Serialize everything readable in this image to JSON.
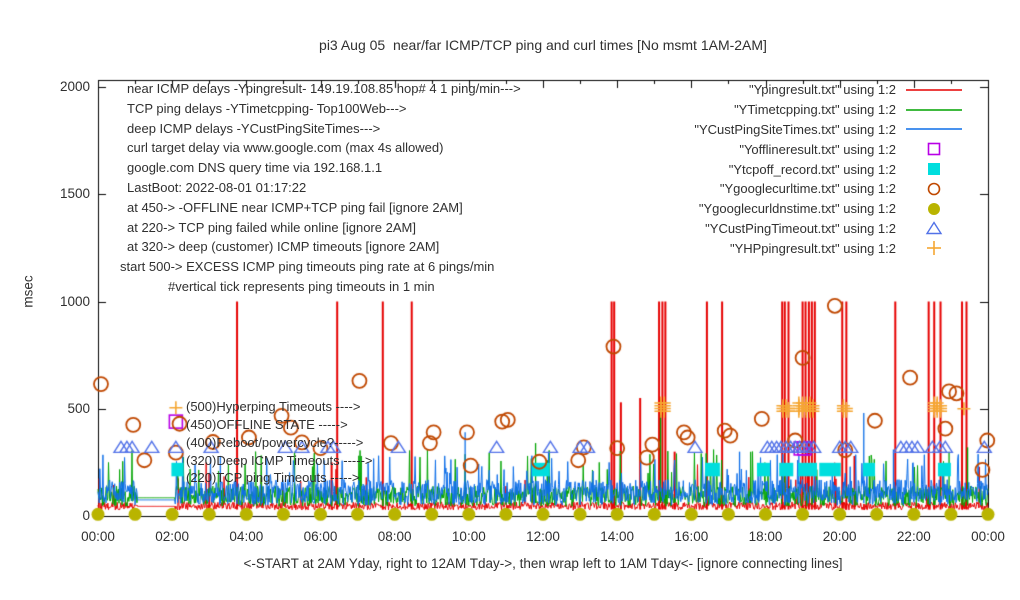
{
  "title": "pi3 Aug 05  near/far ICMP/TCP ping and curl times [No msmt 1AM-2AM]",
  "chart_data": {
    "type": "line",
    "title": "pi3 Aug 05  near/far ICMP/TCP ping and curl times [No msmt 1AM-2AM]",
    "xlabel": "<-START at 2AM Yday, right to 12AM Tday->, then wrap left to 1AM Tday<- [ignore connecting lines]",
    "ylabel": "msec",
    "xlim_hours": [
      0,
      24
    ],
    "ylim": [
      0,
      2050
    ],
    "grid": false,
    "legend_position": "top-right",
    "yticks": [
      {
        "v": 0,
        "label": "0"
      },
      {
        "v": 500,
        "label": "500"
      },
      {
        "v": 1000,
        "label": "1000"
      },
      {
        "v": 1500,
        "label": "1500"
      },
      {
        "v": 2000,
        "label": "2000"
      }
    ],
    "xticks": [
      {
        "h": 0,
        "label": "00:00"
      },
      {
        "h": 2,
        "label": "02:00"
      },
      {
        "h": 4,
        "label": "04:00"
      },
      {
        "h": 6,
        "label": "06:00"
      },
      {
        "h": 8,
        "label": "08:00"
      },
      {
        "h": 10,
        "label": "10:00"
      },
      {
        "h": 12,
        "label": "12:00"
      },
      {
        "h": 14,
        "label": "14:00"
      },
      {
        "h": 16,
        "label": "16:00"
      },
      {
        "h": 18,
        "label": "18:00"
      },
      {
        "h": 20,
        "label": "20:00"
      },
      {
        "h": 22,
        "label": "22:00"
      },
      {
        "h": 24,
        "label": "00:00"
      }
    ],
    "info_lines": [
      "near ICMP delays -Ypingresult- 149.19.108.85 hop# 4 1 ping/min--->",
      "TCP ping delays -YTimetcpping- Top100Web--->",
      "deep ICMP delays -YCustPingSiteTimes--->",
      "curl target delay via www.google.com (max 4s allowed)",
      "google.com DNS query time via 192.168.1.1",
      "LastBoot: 2022-08-01 01:17:22",
      "at 450-> -OFFLINE near ICMP+TCP ping fail [ignore 2AM]",
      "at 220-> TCP ping failed while online [ignore 2AM]",
      "at 320-> deep (customer) ICMP timeouts [ignore 2AM]",
      "start 500-> EXCESS ICMP ping timeouts ping rate at 6 pings/min",
      "#vertical tick represents ping timeouts in 1 min"
    ],
    "level_labels": [
      {
        "value": 500,
        "text": "(500)Hyperping Timeouts ---->"
      },
      {
        "value": 450,
        "text": "(450)OFFLINE STATE ----->"
      },
      {
        "value": 400,
        "text": "(400)Reboot/powercycle?----->"
      },
      {
        "value": 320,
        "text": "(320)Deep ICMP Timeouts ----->"
      },
      {
        "value": 220,
        "text": "(220)TCP ping Timeouts ----->"
      }
    ],
    "series": [
      {
        "label": "\"Ypingresult.txt\" using 1:2",
        "marker": "line",
        "color": "#e60000"
      },
      {
        "label": "\"YTimetcpping.txt\" using 1:2",
        "marker": "line",
        "color": "#00a400"
      },
      {
        "label": "\"YCustPingSiteTimes.txt\" using 1:2",
        "marker": "line",
        "color": "#0d6ee8"
      },
      {
        "label": "\"Yofflineresult.txt\" using 1:2",
        "marker": "square-open",
        "color": "#b800e6"
      },
      {
        "label": "\"Ytcpoff_record.txt\" using 1:2",
        "marker": "square-filled",
        "color": "#00dede"
      },
      {
        "label": "\"Ygooglecurltime.txt\" using 1:2",
        "marker": "circle-open",
        "color": "#c04800"
      },
      {
        "label": "\"Ygooglecurldnstime.txt\" using 1:2",
        "marker": "circle-filled",
        "color": "#b9b400"
      },
      {
        "label": "\"YCustPingTimeout.txt\" using 1:2",
        "marker": "triangle-open",
        "color": "#5272e8"
      },
      {
        "label": "\"YHPpingresult.txt\" using 1:2",
        "marker": "plus",
        "color": "#f5a632"
      }
    ],
    "noise": {
      "seed": 1234,
      "points_per_hour": 60,
      "gap_hours": [
        1.05,
        2.08
      ],
      "flat_during_gap": {
        "red": 45,
        "green": 85,
        "blue": 75
      },
      "red": {
        "base": 28,
        "spread": 38,
        "p_hi": 0.025,
        "hi_base": 90,
        "hi_spread": 160
      },
      "green": {
        "base": 45,
        "spread": 95,
        "p_hi": 0.05,
        "hi_base": 200,
        "hi_spread": 110
      },
      "blue": {
        "base": 50,
        "spread": 120,
        "p_hi": 0.06,
        "hi_base": 190,
        "hi_spread": 100
      }
    },
    "events": {
      "red_spike_top": 1000,
      "red_full_spikes_hours": [
        3.75,
        6.45,
        7.68,
        8.46,
        13.85,
        13.92,
        15.13,
        15.22,
        15.3,
        16.42,
        16.83,
        18.45,
        18.52,
        18.62,
        19.0,
        19.08,
        19.17,
        19.25,
        19.33,
        20.07,
        20.18,
        21.5,
        22.4,
        22.55,
        22.72,
        23.3,
        23.42
      ],
      "red_mid_spikes": [
        [
          3.0,
          200
        ],
        [
          6.3,
          250
        ],
        [
          14.1,
          530
        ],
        [
          14.62,
          550
        ],
        [
          15.55,
          300
        ],
        [
          20.4,
          280
        ]
      ],
      "green_spikes": [
        [
          5.3,
          300
        ],
        [
          7.1,
          280
        ],
        [
          11.8,
          340
        ],
        [
          15.17,
          474
        ],
        [
          17.6,
          300
        ],
        [
          20.8,
          280
        ],
        [
          22.95,
          300
        ],
        [
          23.45,
          320
        ]
      ],
      "blue_spikes": [
        [
          3.3,
          280
        ],
        [
          6.1,
          260
        ],
        [
          9.9,
          390
        ],
        [
          12.15,
          300
        ],
        [
          17.3,
          300
        ],
        [
          18.9,
          280
        ],
        [
          20.65,
          480
        ],
        [
          21.45,
          310
        ]
      ],
      "curl_circles": [
        [
          0.08,
          615
        ],
        [
          0.95,
          425
        ],
        [
          1.25,
          260
        ],
        [
          2.1,
          295
        ],
        [
          2.2,
          430
        ],
        [
          3.1,
          345
        ],
        [
          4.07,
          366
        ],
        [
          4.95,
          467
        ],
        [
          5.2,
          412
        ],
        [
          5.5,
          343
        ],
        [
          6.0,
          316
        ],
        [
          7.05,
          630
        ],
        [
          7.9,
          340
        ],
        [
          8.95,
          340
        ],
        [
          9.05,
          390
        ],
        [
          9.95,
          390
        ],
        [
          10.05,
          235
        ],
        [
          10.9,
          440
        ],
        [
          11.05,
          448
        ],
        [
          11.9,
          253
        ],
        [
          12.95,
          260
        ],
        [
          13.1,
          320
        ],
        [
          13.9,
          790
        ],
        [
          14.0,
          316
        ],
        [
          14.8,
          272
        ],
        [
          14.95,
          333
        ],
        [
          15.8,
          390
        ],
        [
          15.9,
          366
        ],
        [
          16.9,
          398
        ],
        [
          17.05,
          375
        ],
        [
          17.9,
          453
        ],
        [
          18.8,
          352
        ],
        [
          19.0,
          737
        ],
        [
          19.87,
          980
        ],
        [
          20.15,
          307
        ],
        [
          20.95,
          444
        ],
        [
          21.9,
          645
        ],
        [
          22.85,
          407
        ],
        [
          22.95,
          581
        ],
        [
          23.15,
          572
        ],
        [
          23.85,
          215
        ],
        [
          23.98,
          352
        ]
      ],
      "dns_circles": {
        "hour_start": 0,
        "hour_end": 24,
        "hour_step": 1,
        "value": 8
      },
      "offline_squares": [
        [
          2.1,
          440
        ],
        [
          18.95,
          315
        ],
        [
          19.05,
          315
        ]
      ],
      "tcpoff_blocks": {
        "value_band": [
          185,
          248
        ],
        "hour_ranges": [
          [
            1.98,
            2.15
          ],
          [
            11.7,
            12.18
          ],
          [
            16.37,
            16.77
          ],
          [
            17.77,
            18.12
          ],
          [
            18.37,
            18.75
          ],
          [
            18.88,
            19.39
          ],
          [
            19.45,
            20.03
          ],
          [
            20.63,
            20.95
          ],
          [
            22.65,
            23.0
          ]
        ]
      },
      "ping_timeout_triangles": {
        "value": 320,
        "hours": [
          0.62,
          0.78,
          0.92,
          1.45,
          2.1,
          3.05,
          5.05,
          5.5,
          6.2,
          6.35,
          8.1,
          10.75,
          12.2,
          13.0,
          13.2,
          16.1,
          18.05,
          18.17,
          18.3,
          18.42,
          18.55,
          18.68,
          18.8,
          18.92,
          19.05,
          19.17,
          19.3,
          20.0,
          20.15,
          20.3,
          21.65,
          21.8,
          21.95,
          22.1,
          22.5,
          22.7,
          22.85,
          23.9
        ]
      },
      "hp_plus_stack_values": [
        488,
        501,
        514,
        527
      ],
      "hp_plus_clusters": [
        [
          15.18,
          4
        ],
        [
          15.27,
          4
        ],
        [
          18.47,
          3
        ],
        [
          18.55,
          3
        ],
        [
          18.62,
          2
        ],
        [
          18.9,
          4
        ],
        [
          19.0,
          4
        ],
        [
          19.1,
          4
        ],
        [
          19.2,
          4
        ],
        [
          19.28,
          3
        ],
        [
          20.1,
          3
        ],
        [
          20.18,
          2
        ],
        [
          22.55,
          4
        ],
        [
          22.63,
          4
        ],
        [
          22.72,
          3
        ]
      ],
      "hp_plus_singles": [
        [
          2.1,
          505
        ],
        [
          23.35,
          500
        ]
      ]
    }
  }
}
